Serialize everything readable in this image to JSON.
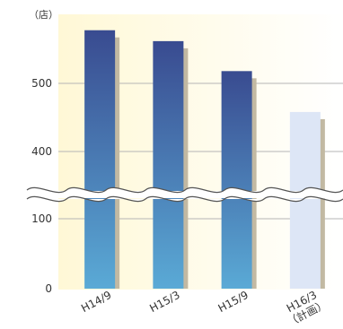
{
  "chart_data": {
    "type": "bar",
    "unit_label": "（店）",
    "categories": [
      "H14/9",
      "H15/3",
      "H15/9",
      "H16/3"
    ],
    "category_sublabels": [
      "",
      "",
      "",
      "（計画）"
    ],
    "values": [
      578,
      562,
      518,
      458
    ],
    "planned": [
      false,
      false,
      false,
      true
    ],
    "y_ticks": [
      0,
      100,
      400,
      500
    ],
    "y_axis_break": [
      100,
      400
    ],
    "ylim": [
      0,
      600
    ],
    "grid": true,
    "colors": {
      "bar_top": "#394b90",
      "bar_bottom": "#5aaad6",
      "planned_bar": "#dde6f6",
      "shadow": "#c2b9a2",
      "background_left": "#fff8d6",
      "background_right": "#ffffff",
      "grid": "#b5b5b5",
      "break_line": "#555555"
    }
  }
}
